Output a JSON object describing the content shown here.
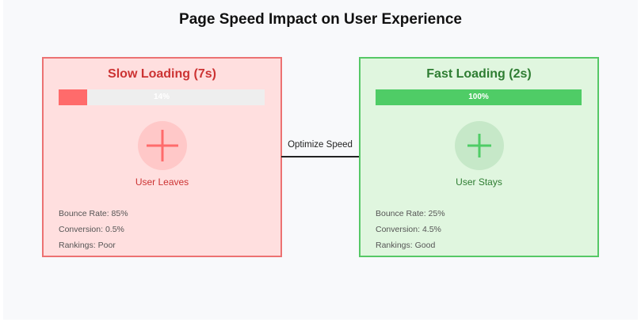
{
  "title": "Page Speed Impact on User Experience",
  "colors": {
    "slow_accent": "#ff6b6b",
    "slow_border": "#ec7272",
    "slow_background": "#ffdfdf",
    "slow_text": "#cc3333",
    "fast_accent": "#4fcc66",
    "fast_border": "#56c866",
    "fast_background": "#e0f6df",
    "fast_text": "#2e7d32"
  },
  "slow": {
    "heading": "Slow Loading (7s)",
    "progress_percent": 14,
    "progress_label": "14%",
    "icon": "plus-icon",
    "status": "User Leaves",
    "metrics": [
      "Bounce Rate: 85%",
      "Conversion: 0.5%",
      "Rankings: Poor"
    ]
  },
  "fast": {
    "heading": "Fast Loading (2s)",
    "progress_percent": 100,
    "progress_label": "100%",
    "icon": "plus-icon",
    "status": "User Stays",
    "metrics": [
      "Bounce Rate: 25%",
      "Conversion: 4.5%",
      "Rankings: Good"
    ]
  },
  "arrow": {
    "label": "Optimize Speed"
  }
}
